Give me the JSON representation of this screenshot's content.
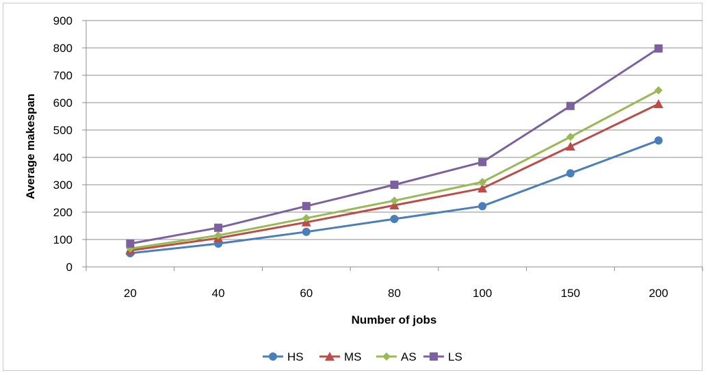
{
  "chart_data": {
    "type": "line",
    "title": "",
    "xlabel": "Number of jobs",
    "ylabel": "Average makespan",
    "categories": [
      "20",
      "40",
      "60",
      "80",
      "100",
      "150",
      "200"
    ],
    "ylim": [
      0,
      900
    ],
    "yticks": [
      0,
      100,
      200,
      300,
      400,
      500,
      600,
      700,
      800,
      900
    ],
    "grid": true,
    "legend_position": "bottom",
    "series": [
      {
        "name": "HS",
        "color": "#4a7ebb",
        "marker": "circle",
        "values": [
          50,
          85,
          128,
          175,
          222,
          342,
          462
        ]
      },
      {
        "name": "MS",
        "color": "#be4b48",
        "marker": "triangle",
        "values": [
          60,
          105,
          163,
          225,
          287,
          440,
          595
        ]
      },
      {
        "name": "AS",
        "color": "#98b954",
        "marker": "diamond",
        "values": [
          67,
          115,
          178,
          242,
          310,
          475,
          645
        ]
      },
      {
        "name": "LS",
        "color": "#7d60a0",
        "marker": "square",
        "values": [
          85,
          143,
          222,
          300,
          383,
          588,
          798
        ]
      }
    ]
  }
}
